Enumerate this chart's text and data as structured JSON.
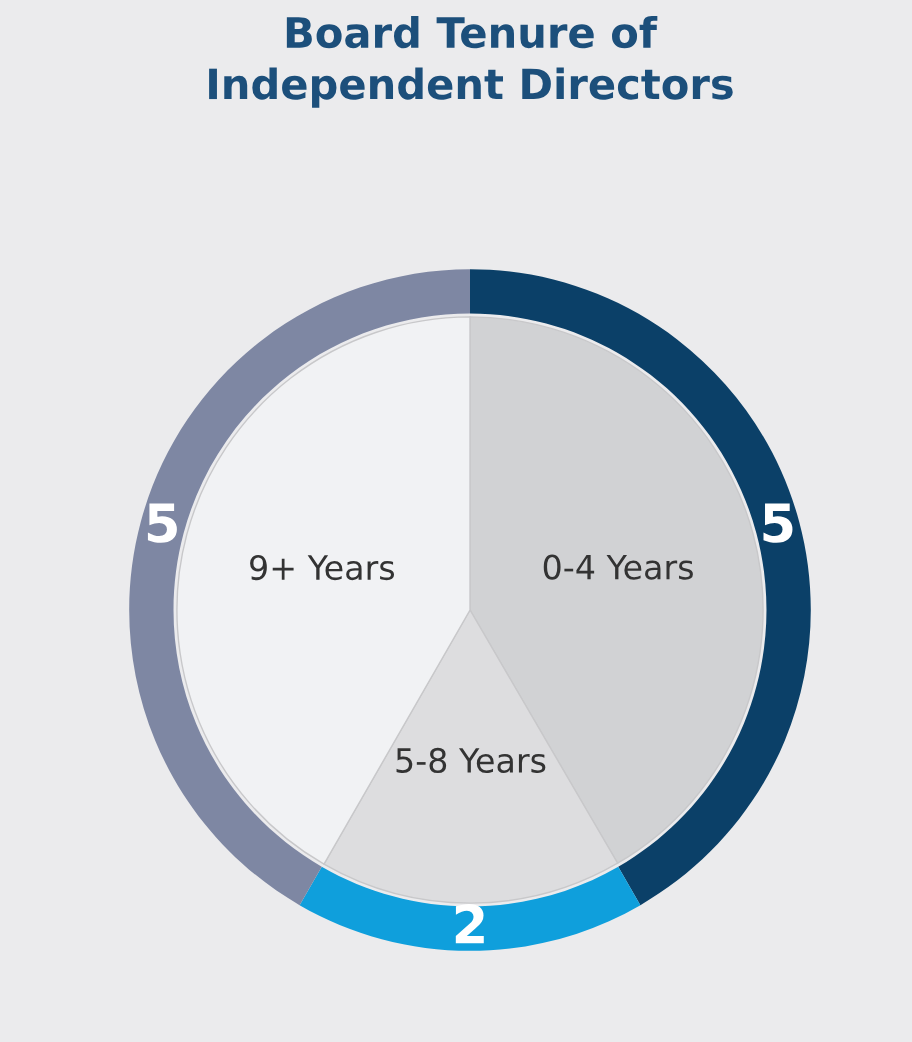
{
  "chart_data": {
    "type": "donut",
    "title": "Board Tenure of\nIndependent Directors",
    "categories": [
      "0-4 Years",
      "5-8 Years",
      "9+ Years"
    ],
    "series": [
      {
        "type": "donut",
        "values": [
          5,
          2,
          5
        ],
        "colors": [
          "#0b4068",
          "#0f9fdc",
          "#7e87a3"
        ],
        "value_labels": [
          "5",
          "2",
          "5"
        ]
      },
      {
        "type": "pie",
        "values": [
          41.6,
          16.7,
          41.7
        ],
        "colors": [
          "#d1d2d4",
          "#dddddf",
          "#f1f2f4"
        ]
      }
    ]
  }
}
